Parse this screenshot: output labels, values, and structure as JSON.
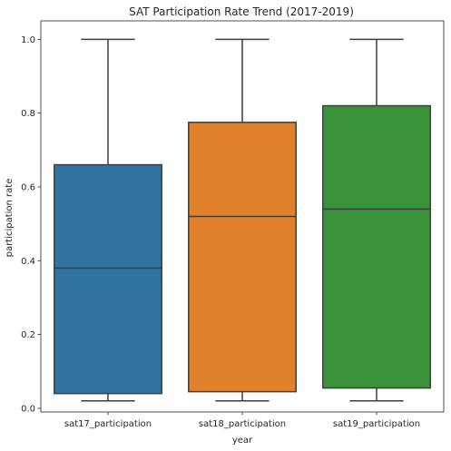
{
  "chart_data": {
    "type": "box",
    "title": "SAT Participation Rate Trend (2017-2019)",
    "xlabel": "year",
    "ylabel": "participation rate",
    "ylim": [
      -0.01,
      1.05
    ],
    "yticks": [
      "0.0",
      "0.2",
      "0.4",
      "0.6",
      "0.8",
      "1.0"
    ],
    "categories": [
      "sat17_participation",
      "sat18_participation",
      "sat19_participation"
    ],
    "boxes": [
      {
        "min": 0.02,
        "q1": 0.04,
        "median": 0.38,
        "q3": 0.66,
        "max": 1.0,
        "color": "#3274a1"
      },
      {
        "min": 0.02,
        "q1": 0.045,
        "median": 0.52,
        "q3": 0.775,
        "max": 1.0,
        "color": "#e1812c"
      },
      {
        "min": 0.02,
        "q1": 0.055,
        "median": 0.54,
        "q3": 0.82,
        "max": 1.0,
        "color": "#3a923a"
      }
    ],
    "line_color": "#3d3d3d",
    "grid": false
  }
}
